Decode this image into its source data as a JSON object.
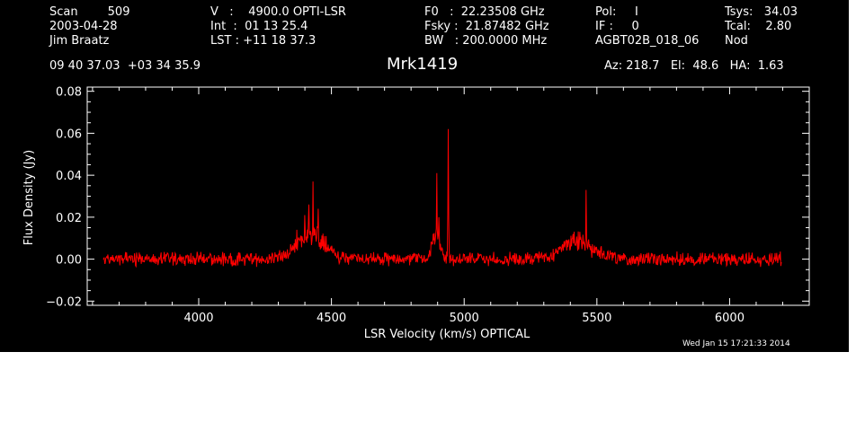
{
  "header": {
    "col1": [
      "Scan        509",
      "2003-04-28",
      "Jim Braatz"
    ],
    "col2": [
      "V   :    4900.0 OPTI-LSR",
      "Int  :  01 13 25.4",
      "LST : +11 18 37.3"
    ],
    "col3": [
      "F0   :  22.23508 GHz",
      "Fsky :  21.87482 GHz",
      "BW   : 200.0000 MHz"
    ],
    "col4": [
      "Pol:     I",
      "IF :     0",
      "AGBT02B_018_06"
    ],
    "col5": [
      "Tsys:   34.03",
      "Tcal:    2.80",
      "Nod"
    ],
    "coords": "09 40 37.03  +03 34 35.9",
    "source": "Mrk1419",
    "azelha": "Az: 218.7   El:  48.6   HA:  1.63",
    "timestamp": "Wed Jan 15 17:21:33 2014"
  },
  "chart_data": {
    "type": "line",
    "title": "Mrk1419",
    "xlabel": "LSR Velocity (km/s) OPTICAL",
    "ylabel": "Flux Density (Jy)",
    "xlim": [
      3580,
      6300
    ],
    "ylim": [
      -0.022,
      0.082
    ],
    "xticks": [
      4000,
      4500,
      5000,
      5500,
      6000
    ],
    "xtick_labels": [
      "4000",
      "4500",
      "5000",
      "5500",
      "6000"
    ],
    "yticks": [
      -0.02,
      0.0,
      0.02,
      0.04,
      0.06,
      0.08
    ],
    "ytick_labels": [
      "−0.02",
      "0.00",
      "0.02",
      "0.04",
      "0.06",
      "0.08"
    ],
    "grid": false,
    "line_color": "#ff0000",
    "series": [
      {
        "x_range": [
          3640,
          6195
        ],
        "noise_amplitude": 0.0025,
        "features": [
          {
            "type": "broad",
            "center": 4420,
            "width": 50,
            "amp": 0.012
          },
          {
            "type": "spike",
            "center": 4430,
            "amp": 0.037
          },
          {
            "type": "spike",
            "center": 4415,
            "amp": 0.026
          },
          {
            "type": "spike",
            "center": 4400,
            "amp": 0.021
          },
          {
            "type": "spike",
            "center": 4450,
            "amp": 0.024
          },
          {
            "type": "spike",
            "center": 4370,
            "amp": 0.014
          },
          {
            "type": "spike",
            "center": 4480,
            "amp": 0.011
          },
          {
            "type": "broad",
            "center": 4895,
            "width": 15,
            "amp": 0.012
          },
          {
            "type": "spike",
            "center": 4897,
            "amp": 0.041
          },
          {
            "type": "spike",
            "center": 4905,
            "amp": 0.02
          },
          {
            "type": "spike",
            "center": 4940,
            "amp": 0.062
          },
          {
            "type": "broad",
            "center": 5420,
            "width": 60,
            "amp": 0.008
          },
          {
            "type": "spike",
            "center": 5460,
            "amp": 0.033
          },
          {
            "type": "spike",
            "center": 5410,
            "amp": 0.012
          },
          {
            "type": "spike",
            "center": 5440,
            "amp": 0.01
          }
        ]
      }
    ]
  }
}
